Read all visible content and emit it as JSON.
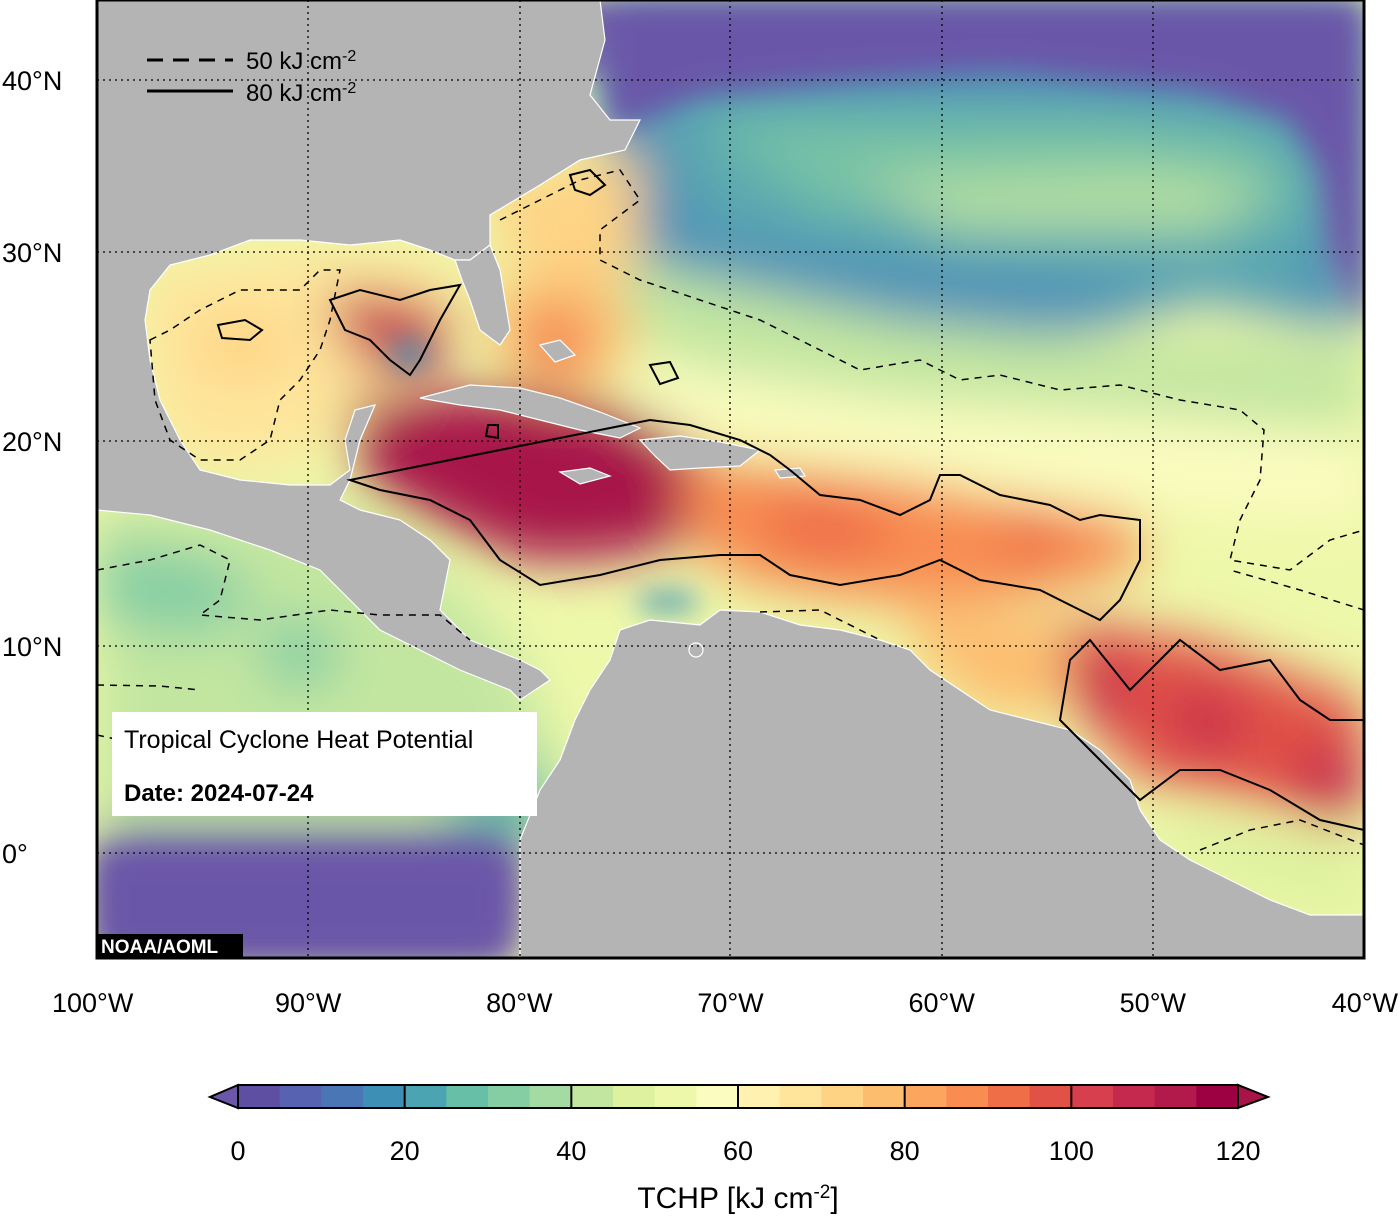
{
  "map": {
    "title": "Tropical Cyclone Heat Potential",
    "date_label": "Date: 2024-07-24",
    "credit": "NOAA/AOML",
    "extent": {
      "lon_min": -100,
      "lon_max": -40,
      "lat_min": -5,
      "lat_max": 45
    },
    "lat_ticks": [
      {
        "value": 40,
        "label": "40°N"
      },
      {
        "value": 30,
        "label": "30°N"
      },
      {
        "value": 20,
        "label": "20°N"
      },
      {
        "value": 10,
        "label": "10°N"
      },
      {
        "value": 0,
        "label": "0°"
      }
    ],
    "lon_ticks": [
      {
        "value": -100,
        "label": "100°W"
      },
      {
        "value": -90,
        "label": "90°W"
      },
      {
        "value": -80,
        "label": "80°W"
      },
      {
        "value": -70,
        "label": "70°W"
      },
      {
        "value": -60,
        "label": "60°W"
      },
      {
        "value": -50,
        "label": "50°W"
      },
      {
        "value": -40,
        "label": "40°W"
      }
    ],
    "legend": {
      "dashed": "50 kJ cm",
      "solid": "80 kJ cm",
      "unit_exponent": "-2"
    },
    "colors": {
      "land": "#b4b4b4",
      "low": "#6a57a8",
      "high": "#a8144a"
    }
  },
  "colorbar": {
    "min": 0,
    "max": 120,
    "step": 5,
    "ticks": [
      "0",
      "20",
      "40",
      "60",
      "80",
      "100",
      "120"
    ],
    "label": "TCHP [kJ cm",
    "label_exponent": "-2",
    "label_close": "]",
    "palette": [
      "#5e4fa2",
      "#5762b0",
      "#4a76b6",
      "#3e8fb5",
      "#4aa4b2",
      "#66bfa6",
      "#85cea4",
      "#a4dba3",
      "#c2e6a0",
      "#ddf19f",
      "#eef8aa",
      "#fbfcc0",
      "#fff2b0",
      "#fee59b",
      "#fed384",
      "#fdbd6f",
      "#fca55f",
      "#f88c51",
      "#ef6e48",
      "#e15146",
      "#d73f4e",
      "#c5294d",
      "#b21a4b",
      "#9e0142"
    ]
  }
}
